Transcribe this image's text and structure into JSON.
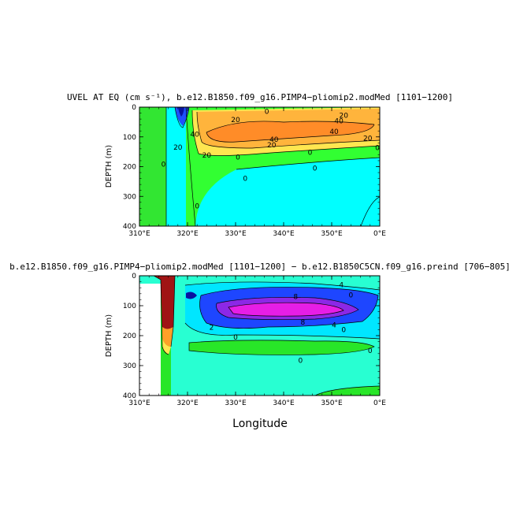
{
  "chart_data": [
    {
      "type": "heatmap",
      "title": "UVEL AT EQ (cm s⁻¹), b.e12.B1850.f09_g16.PIMP4−pliomip2.modMed [1101−1200]",
      "xlabel": "",
      "ylabel": "DEPTH (m)",
      "xlim": [
        310,
        360
      ],
      "ylim": [
        400,
        0
      ],
      "x_ticks": [
        "310°E",
        "320°E",
        "330°E",
        "340°E",
        "350°E",
        "0°E"
      ],
      "y_ticks": [
        "0",
        "100",
        "200",
        "300",
        "400"
      ],
      "colors": {
        "land": "#32e632",
        "low": "#00ffff",
        "mid": "#32ff32",
        "warm": "#ffd21e",
        "hot": "#ff8c1e",
        "neg": "#1e4bff"
      },
      "contour_labels": [
        {
          "text": "0",
          "x": 336.5,
          "y": 15
        },
        {
          "text": "20",
          "x": 330,
          "y": 42
        },
        {
          "text": "20",
          "x": 352.5,
          "y": 28
        },
        {
          "text": "40",
          "x": 351.5,
          "y": 47
        },
        {
          "text": "40",
          "x": 321.5,
          "y": 92
        },
        {
          "text": "40",
          "x": 338,
          "y": 108
        },
        {
          "text": "40",
          "x": 350.5,
          "y": 82
        },
        {
          "text": "20",
          "x": 357.5,
          "y": 105
        },
        {
          "text": "20",
          "x": 318,
          "y": 135
        },
        {
          "text": "20",
          "x": 337.5,
          "y": 127
        },
        {
          "text": "20",
          "x": 324,
          "y": 162
        },
        {
          "text": "0",
          "x": 330.5,
          "y": 168
        },
        {
          "text": "0",
          "x": 345.5,
          "y": 152
        },
        {
          "text": "0",
          "x": 359.5,
          "y": 137
        },
        {
          "text": "0",
          "x": 346.5,
          "y": 205
        },
        {
          "text": "0",
          "x": 332,
          "y": 240
        },
        {
          "text": "0",
          "x": 315,
          "y": 192
        },
        {
          "text": "0",
          "x": 322,
          "y": 333
        }
      ]
    },
    {
      "type": "heatmap",
      "title": "b.e12.B1850.f09_g16.PIMP4−pliomip2.modMed [1101−1200] − b.e12.B1850C5CN.f09_g16.preind [706−805]",
      "xlabel": "Longitude",
      "ylabel": "DEPTH (m)",
      "xlim": [
        310,
        360
      ],
      "ylim": [
        400,
        0
      ],
      "x_ticks": [
        "310°E",
        "320°E",
        "330°E",
        "340°E",
        "350°E",
        "0°E"
      ],
      "y_ticks": [
        "0",
        "100",
        "200",
        "300",
        "400"
      ],
      "colors": {
        "teal": "#28ffd2",
        "green": "#28e628",
        "cyan": "#00e6ff",
        "blue": "#1e46ff",
        "purple": "#8c28e6",
        "magenta": "#e61ee6",
        "red": "#a01414"
      },
      "contour_labels": [
        {
          "text": "4",
          "x": 352,
          "y": 30
        },
        {
          "text": "0",
          "x": 354,
          "y": 65
        },
        {
          "text": "8",
          "x": 342.5,
          "y": 70
        },
        {
          "text": "8",
          "x": 344,
          "y": 155
        },
        {
          "text": "4",
          "x": 350.5,
          "y": 165
        },
        {
          "text": "0",
          "x": 352.5,
          "y": 180
        },
        {
          "text": "2",
          "x": 325,
          "y": 172
        },
        {
          "text": "0",
          "x": 330,
          "y": 205
        },
        {
          "text": "0",
          "x": 343.5,
          "y": 283
        },
        {
          "text": "0",
          "x": 358,
          "y": 250
        }
      ]
    }
  ]
}
